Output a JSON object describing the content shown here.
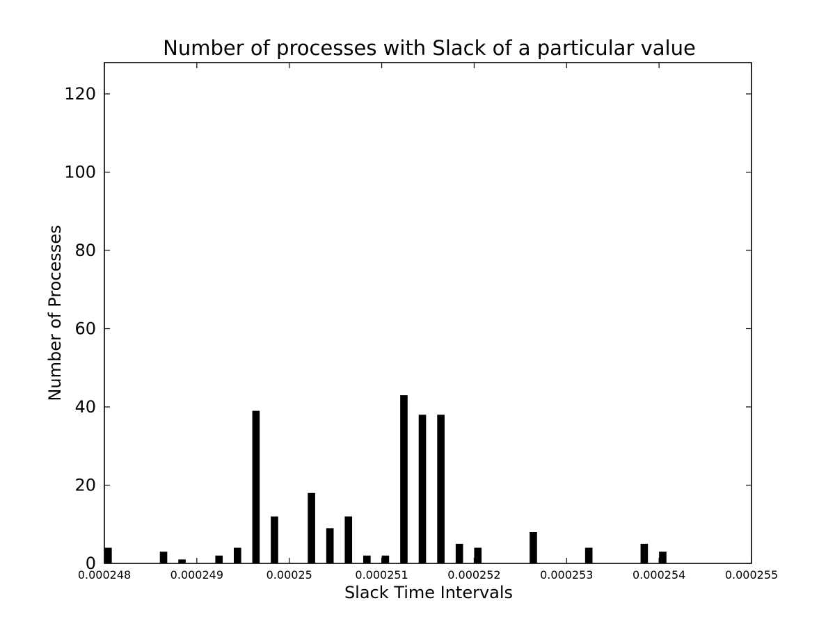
{
  "chart_data": {
    "type": "bar",
    "title": "Number of processes with Slack of a particular value",
    "xlabel": "Slack Time Intervals",
    "ylabel": "Number of Processes",
    "xlim": [
      0.000248,
      0.000255
    ],
    "ylim": [
      0,
      128
    ],
    "xticks": [
      0.000248,
      0.000249,
      0.00025,
      0.000251,
      0.000252,
      0.000253,
      0.000254,
      0.000255
    ],
    "xtick_labels": [
      "0.000248",
      "0.000249",
      "0.00025",
      "0.000251",
      "0.000252",
      "0.000253",
      "0.000254",
      "0.000255"
    ],
    "yticks": [
      0,
      20,
      40,
      60,
      80,
      100,
      120
    ],
    "ytick_labels": [
      "0",
      "20",
      "40",
      "60",
      "80",
      "100",
      "120"
    ],
    "grid": false,
    "bar_color": "#000000",
    "bar_width": 8e-08,
    "x": [
      0.00024804,
      0.00024864,
      0.00024884,
      0.00024924,
      0.00024944,
      0.00024964,
      0.00024984,
      0.00025024,
      0.00025044,
      0.00025064,
      0.00025084,
      0.00025104,
      0.00025124,
      0.00025144,
      0.00025164,
      0.00025184,
      0.00025204,
      0.00025264,
      0.00025324,
      0.00025384,
      0.00025404
    ],
    "values": [
      4,
      3,
      1,
      2,
      4,
      39,
      12,
      18,
      9,
      12,
      2,
      2,
      43,
      38,
      38,
      5,
      4,
      8,
      4,
      5,
      3
    ]
  }
}
